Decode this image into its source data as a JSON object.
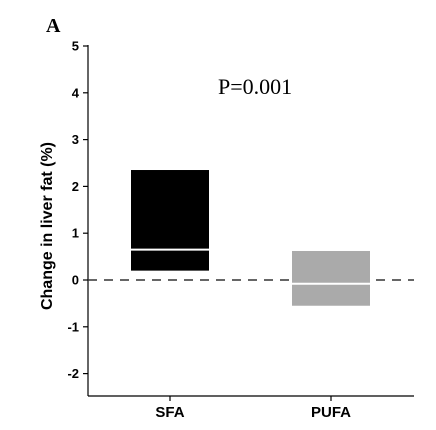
{
  "chart_data": {
    "type": "bar",
    "panel_label": "A",
    "annotation": "P=0.001",
    "ylabel": "Change in liver fat (%)",
    "xlabel": "",
    "ylim": [
      -2.5,
      5.2
    ],
    "yticks": [
      5,
      4,
      3,
      2,
      1,
      0,
      -1,
      -2
    ],
    "reference_line": 0,
    "categories": [
      "SFA",
      "PUFA"
    ],
    "boxes": [
      {
        "category": "SFA",
        "q1": 0.2,
        "median": 0.65,
        "q3": 2.35,
        "color": "#000000",
        "median_color": "#ffffff"
      },
      {
        "category": "PUFA",
        "q1": -0.55,
        "median": -0.08,
        "q3": 0.62,
        "color": "#aaaaaa",
        "median_color": "#ffffff"
      }
    ]
  }
}
